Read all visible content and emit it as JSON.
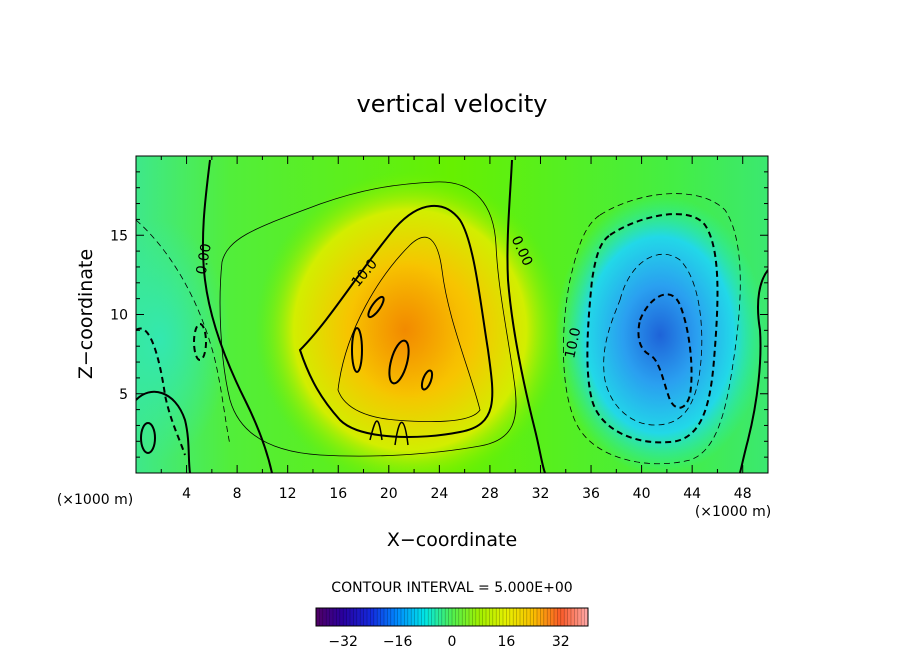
{
  "chart_data": {
    "type": "heatmap",
    "title": "vertical velocity",
    "xlabel": "X−coordinate",
    "ylabel": "Z−coordinate",
    "x_unit": "(×1000 m)",
    "z_unit": "(×1000 m)",
    "xlim": [
      0,
      50
    ],
    "ylim": [
      0,
      20
    ],
    "x_ticks": [
      4,
      8,
      12,
      16,
      20,
      24,
      28,
      32,
      36,
      40,
      44,
      48
    ],
    "y_ticks": [
      5,
      10,
      15
    ],
    "contour_interval_text": "CONTOUR INTERVAL = 5.000E+00",
    "contour_labels": [
      {
        "text": "0.00",
        "x": 5.4,
        "z": 13.5,
        "angle": -80
      },
      {
        "text": "10.0",
        "x": 18.1,
        "z": 12.6,
        "angle": -50
      },
      {
        "text": "0.00",
        "x": 30.5,
        "z": 14.0,
        "angle": 65
      },
      {
        "text": "10.0",
        "x": 34.6,
        "z": 8.2,
        "angle": -78
      }
    ],
    "field_features": [
      {
        "name": "updraft",
        "x": 21.5,
        "z": 9.5,
        "value": 24
      },
      {
        "name": "downdraft",
        "x": 42.5,
        "z": 8.5,
        "value": -22
      }
    ],
    "colorbar": {
      "min": -40,
      "max": 40,
      "tick_values": [
        -32,
        -16,
        0,
        16,
        32
      ],
      "tick_labels": [
        "−32",
        "−16",
        "0",
        "16",
        "32"
      ]
    }
  }
}
